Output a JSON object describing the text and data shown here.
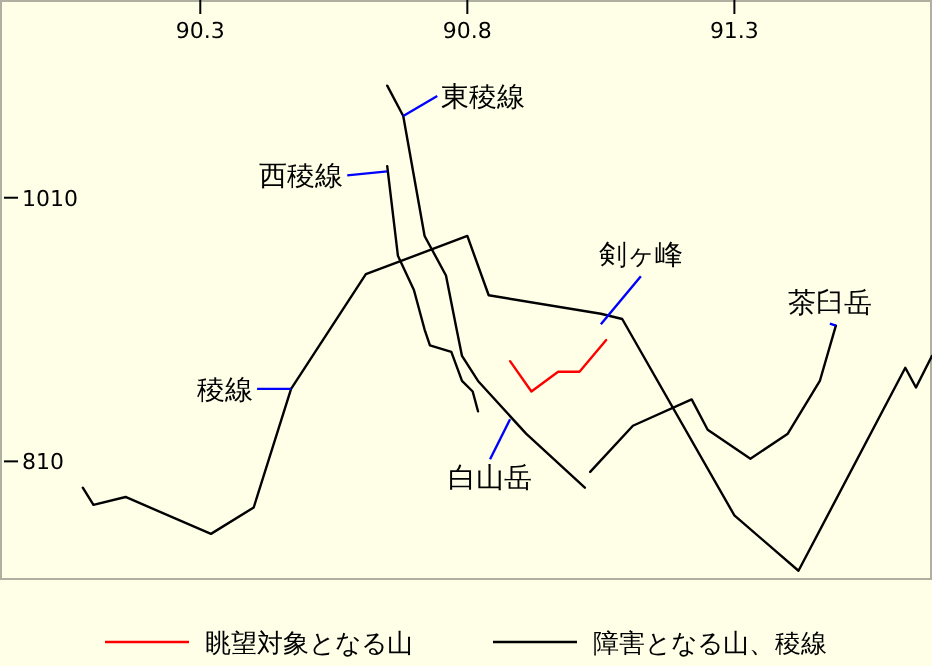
{
  "chart_data": {
    "type": "line",
    "xlim": [
      89.925,
      91.67
    ],
    "ylim": [
      720,
      1160
    ],
    "xticks": [
      90.3,
      90.8,
      91.3
    ],
    "yticks": [
      810,
      1010
    ],
    "grid": false,
    "legend": "bottom",
    "line_style": "solid",
    "marker": "none",
    "series": [
      {
        "name": "眺望対象となる山",
        "color": "#ff0000",
        "x": [
          90.88,
          90.92,
          90.97,
          91.01,
          91.06
        ],
        "values": [
          886,
          863,
          878,
          878,
          902
        ]
      },
      {
        "name": "障害となる山、稜線",
        "color": "#000000",
        "x": [
          90.08,
          90.1,
          90.16,
          90.32,
          90.4,
          90.47,
          90.61,
          90.8,
          90.84,
          91.05,
          91.09,
          91.3,
          91.42,
          91.62,
          91.64,
          91.67
        ],
        "values": [
          790,
          777,
          783,
          755,
          775,
          865,
          952,
          981,
          936,
          922,
          918,
          769,
          727,
          881,
          866,
          890
        ]
      },
      {
        "color": "#000000",
        "x": [
          90.65,
          90.68,
          90.72,
          90.76,
          90.78,
          90.79,
          90.82,
          90.91,
          91.02
        ],
        "values": [
          1095,
          1072,
          981,
          951,
          910,
          890,
          871,
          831,
          790
        ]
      },
      {
        "color": "#000000",
        "x": [
          90.65,
          90.67,
          90.7,
          90.72,
          90.73,
          90.77,
          90.79,
          90.81,
          90.82
        ],
        "values": [
          1034,
          966,
          940,
          910,
          898,
          893,
          871,
          863,
          848
        ]
      },
      {
        "color": "#000000",
        "x": [
          91.03,
          91.11,
          91.22,
          91.25,
          91.33,
          91.4,
          91.46,
          91.49
        ],
        "values": [
          802,
          837,
          857,
          834,
          812,
          831,
          871,
          913
        ]
      }
    ],
    "annotations": [
      {
        "text": "東稜線",
        "x": 90.68,
        "y": 1072
      },
      {
        "text": "西稜線",
        "x": 90.65,
        "y": 1030
      },
      {
        "text": "剣ヶ峰",
        "x": 91.05,
        "y": 914
      },
      {
        "text": "茶臼岳",
        "x": 91.49,
        "y": 913
      },
      {
        "text": "稜線",
        "x": 90.47,
        "y": 865
      },
      {
        "text": "白山岳",
        "x": 90.88,
        "y": 842
      }
    ]
  }
}
